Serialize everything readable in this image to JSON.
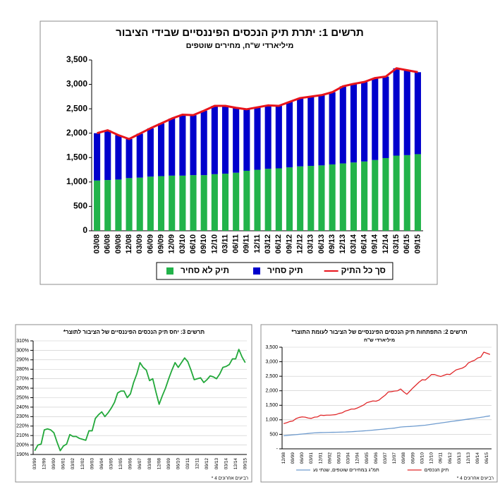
{
  "chart_data": [
    {
      "type": "bar",
      "stacked": true,
      "title": "תרשים 1: יתרת תיק הנכסים הפיננסיים שבידי הציבור",
      "subtitle": "מיליארדי ש\"ח, מחירים שוטפים",
      "categories": [
        "03/08",
        "06/08",
        "09/08",
        "12/08",
        "03/09",
        "06/09",
        "09/09",
        "12/09",
        "03/10",
        "06/10",
        "09/10",
        "12/10",
        "03/11",
        "06/11",
        "09/11",
        "12/11",
        "03/12",
        "06/12",
        "09/12",
        "12/12",
        "03/13",
        "06/13",
        "09/13",
        "12/13",
        "03/14",
        "06/14",
        "09/14",
        "12/14",
        "03/15",
        "06/15",
        "09/15"
      ],
      "series": [
        {
          "name": "תיק לא סחיר",
          "color": "#22b34a",
          "values": [
            1030,
            1040,
            1050,
            1080,
            1090,
            1110,
            1120,
            1130,
            1130,
            1140,
            1140,
            1160,
            1170,
            1190,
            1230,
            1250,
            1270,
            1280,
            1300,
            1320,
            1330,
            1340,
            1360,
            1380,
            1400,
            1420,
            1450,
            1490,
            1540,
            1550,
            1570
          ]
        },
        {
          "name": "תיק סחיר",
          "color": "#0000cc",
          "values": [
            970,
            1020,
            910,
            800,
            900,
            990,
            1080,
            1170,
            1250,
            1230,
            1320,
            1400,
            1390,
            1330,
            1260,
            1280,
            1300,
            1280,
            1340,
            1400,
            1420,
            1440,
            1480,
            1580,
            1610,
            1630,
            1680,
            1670,
            1790,
            1740,
            1680
          ]
        },
        {
          "name": "סך כל התיק",
          "color": "#e8141b",
          "type": "line",
          "values": [
            2000,
            2060,
            1960,
            1880,
            1990,
            2100,
            2200,
            2300,
            2380,
            2370,
            2460,
            2560,
            2560,
            2520,
            2490,
            2530,
            2570,
            2560,
            2640,
            2720,
            2750,
            2780,
            2840,
            2960,
            3010,
            3050,
            3130,
            3160,
            3330,
            3290,
            3250
          ]
        }
      ],
      "ylim": [
        0,
        3500
      ],
      "yticks": [
        0,
        500,
        {
          "value": 1000,
          "label": "1,000"
        },
        {
          "value": 1500,
          "label": "1,500"
        },
        {
          "value": 2000,
          "label": "2,000"
        },
        {
          "value": 2500,
          "label": "2,500"
        },
        {
          "value": 3000,
          "label": "3,000"
        },
        {
          "value": 3500,
          "label": "3,500"
        }
      ],
      "grid": false,
      "legend": "bottom"
    },
    {
      "type": "line",
      "title": "תרשים 2: התפתחות תיק הנכסים הפיננסיים של הציבור לעומת התוצר*",
      "subtitle": "מיליארדי ש\"ח",
      "categories": [
        "12/98",
        null,
        null,
        "09/99",
        null,
        null,
        "06/00",
        null,
        null,
        "03/01",
        null,
        null,
        "12/01",
        null,
        null,
        "09/02",
        null,
        null,
        "06/03",
        null,
        null,
        "03/04",
        null,
        null,
        "12/04",
        null,
        null,
        "09/05",
        null,
        null,
        "06/06",
        null,
        null,
        "03/07",
        null,
        null,
        "12/07",
        null,
        null,
        "09/08",
        null,
        null,
        "06/09",
        null,
        null,
        "03/10",
        null,
        null,
        "12/10",
        null,
        null,
        "09/11",
        null,
        null,
        "06/12",
        null,
        null,
        "03/13",
        null,
        null,
        "12/13",
        null,
        null,
        "09/14",
        null,
        null,
        "06/15",
        null
      ],
      "series": [
        {
          "name": "תמ\"ג במחירים שוטפים, שנתי נע",
          "color": "#6f9ccf",
          "values": [
            450,
            460,
            470,
            480,
            490,
            500,
            510,
            520,
            530,
            540,
            550,
            555,
            560,
            562,
            565,
            568,
            570,
            572,
            575,
            578,
            580,
            585,
            590,
            597,
            604,
            611,
            618,
            625,
            635,
            645,
            655,
            665,
            675,
            685,
            695,
            705,
            715,
            735,
            750,
            760,
            765,
            770,
            778,
            786,
            795,
            805,
            815,
            830,
            845,
            860,
            875,
            890,
            905,
            920,
            935,
            950,
            965,
            980,
            995,
            1010,
            1025,
            1040,
            1055,
            1070,
            1085,
            1100,
            1120,
            1135
          ]
        },
        {
          "name": "תיק הנכסים",
          "color": "#e0282a",
          "values": [
            870,
            900,
            940,
            960,
            1040,
            1080,
            1100,
            1090,
            1060,
            1050,
            1090,
            1100,
            1160,
            1150,
            1160,
            1160,
            1170,
            1180,
            1220,
            1240,
            1300,
            1330,
            1370,
            1370,
            1410,
            1460,
            1510,
            1590,
            1620,
            1650,
            1640,
            1680,
            1770,
            1850,
            1960,
            1970,
            1990,
            2000,
            2060,
            1960,
            1880,
            1990,
            2100,
            2200,
            2300,
            2380,
            2370,
            2460,
            2560,
            2560,
            2520,
            2490,
            2530,
            2570,
            2560,
            2640,
            2720,
            2750,
            2780,
            2840,
            2960,
            3010,
            3050,
            3130,
            3160,
            3330,
            3290,
            3250
          ]
        }
      ],
      "ylim": [
        0,
        3500
      ],
      "yticks": [
        {
          "value": 0,
          "label": "-"
        },
        500,
        {
          "value": 1000,
          "label": "1,000"
        },
        {
          "value": 1500,
          "label": "1,500"
        },
        {
          "value": 2000,
          "label": "2,000"
        },
        {
          "value": 2500,
          "label": "2,500"
        },
        {
          "value": 3000,
          "label": "3,000"
        },
        {
          "value": 3500,
          "label": "3,500"
        }
      ],
      "grid": true,
      "legend": "bottom",
      "footnote": "* 4 רביעים אחרונים"
    },
    {
      "type": "line",
      "title": "תרשים 3: יחס תיק הנכסים הפיננסיים של הציבור לתוצר*",
      "categories": [
        "03/99",
        null,
        null,
        "12/99",
        null,
        null,
        "09/00",
        null,
        null,
        "06/01",
        null,
        null,
        "03/02",
        null,
        null,
        "12/02",
        null,
        null,
        "09/03",
        null,
        null,
        "06/04",
        null,
        null,
        "03/05",
        null,
        null,
        "12/05",
        null,
        null,
        "09/06",
        null,
        null,
        "06/07",
        null,
        null,
        "03/08",
        null,
        null,
        "12/08",
        null,
        null,
        "09/09",
        null,
        null,
        "06/10",
        null,
        null,
        "03/11",
        null,
        null,
        "12/11",
        null,
        null,
        "09/12",
        null,
        null,
        "06/13",
        null,
        null,
        "03/14",
        null,
        null,
        "12/14",
        null,
        null,
        "09/15"
      ],
      "series": [
        {
          "color": "#22a83a",
          "values": [
            194,
            200,
            201,
            216,
            217,
            216,
            213,
            203,
            194,
            199,
            201,
            211,
            209,
            209,
            207,
            206,
            205,
            215,
            215,
            228,
            232,
            235,
            230,
            234,
            239,
            245,
            255,
            257,
            257,
            250,
            254,
            266,
            275,
            287,
            282,
            279,
            268,
            270,
            256,
            243,
            252,
            260,
            270,
            279,
            287,
            282,
            287,
            292,
            288,
            279,
            269,
            270,
            271,
            266,
            269,
            273,
            272,
            270,
            275,
            282,
            283,
            285,
            291,
            291,
            301,
            293,
            287
          ]
        }
      ],
      "ylim": [
        190,
        310
      ],
      "yticks": [
        {
          "value": 190,
          "label": "190%"
        },
        {
          "value": 200,
          "label": "200%"
        },
        {
          "value": 210,
          "label": "210%"
        },
        {
          "value": 220,
          "label": "220%"
        },
        {
          "value": 230,
          "label": "230%"
        },
        {
          "value": 240,
          "label": "240%"
        },
        {
          "value": 250,
          "label": "250%"
        },
        {
          "value": 260,
          "label": "260%"
        },
        {
          "value": 270,
          "label": "270%"
        },
        {
          "value": 280,
          "label": "280%"
        },
        {
          "value": 290,
          "label": "290%"
        },
        {
          "value": 300,
          "label": "300%"
        },
        {
          "value": 310,
          "label": "310%"
        }
      ],
      "grid": true,
      "footnote": "* 4 רביעים אחרונים"
    }
  ]
}
